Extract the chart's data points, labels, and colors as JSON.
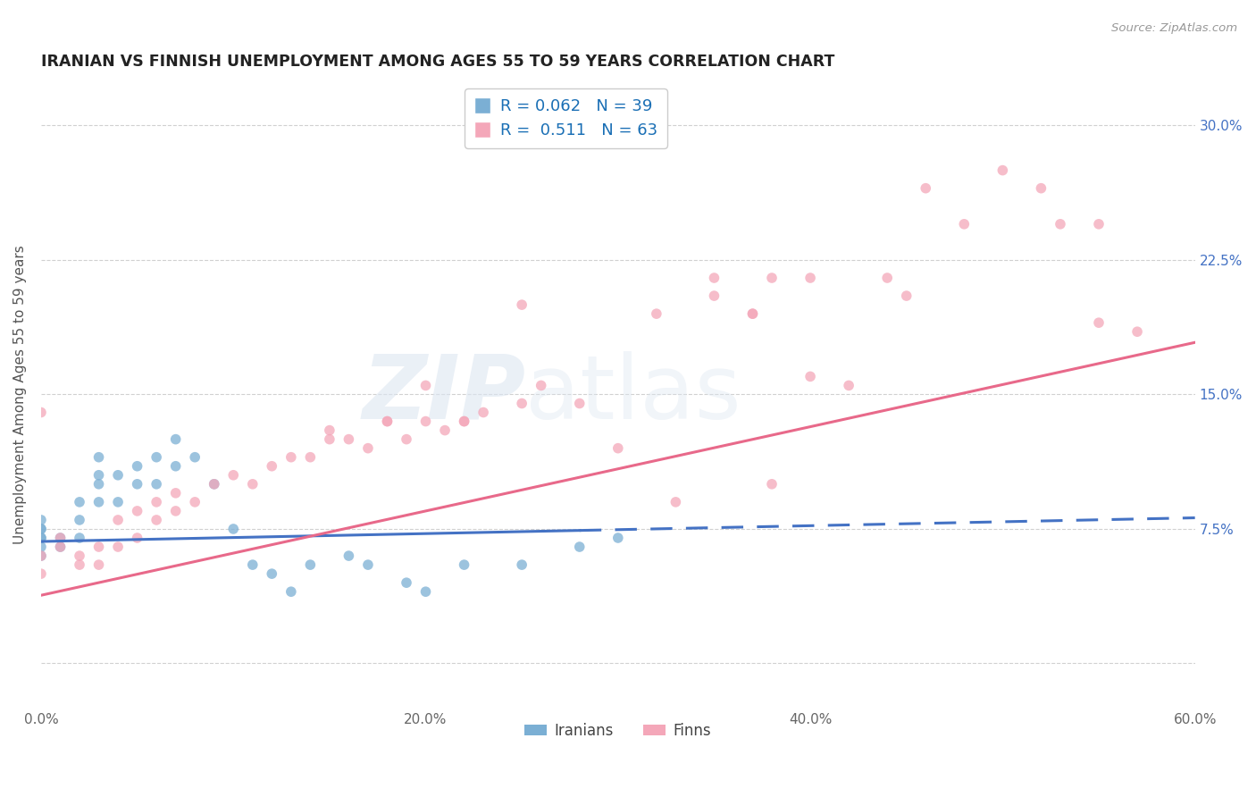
{
  "title": "IRANIAN VS FINNISH UNEMPLOYMENT AMONG AGES 55 TO 59 YEARS CORRELATION CHART",
  "source": "Source: ZipAtlas.com",
  "ylabel": "Unemployment Among Ages 55 to 59 years",
  "xlim": [
    0.0,
    0.6
  ],
  "ylim": [
    -0.025,
    0.325
  ],
  "xticks": [
    0.0,
    0.1,
    0.2,
    0.3,
    0.4,
    0.5,
    0.6
  ],
  "xticklabels": [
    "0.0%",
    "",
    "20.0%",
    "",
    "40.0%",
    "",
    "60.0%"
  ],
  "yticks": [
    0.0,
    0.075,
    0.15,
    0.225,
    0.3
  ],
  "yticklabels": [
    "",
    "7.5%",
    "15.0%",
    "22.5%",
    "30.0%"
  ],
  "iranian_color": "#7bafd4",
  "finn_color": "#f4a7b9",
  "iranian_line_color": "#4472c4",
  "finn_line_color": "#e8698a",
  "legend_R_iranian": "0.062",
  "legend_N_iranian": "39",
  "legend_R_finn": "0.511",
  "legend_N_finn": "63",
  "background_color": "#ffffff",
  "grid_color": "#cccccc",
  "iranian_line_slope": 0.022,
  "iranian_line_intercept": 0.068,
  "finn_line_slope": 0.235,
  "finn_line_intercept": 0.038,
  "iranians_x": [
    0.0,
    0.0,
    0.0,
    0.0,
    0.0,
    0.0,
    0.0,
    0.01,
    0.01,
    0.02,
    0.02,
    0.02,
    0.03,
    0.03,
    0.03,
    0.03,
    0.04,
    0.04,
    0.05,
    0.05,
    0.06,
    0.06,
    0.07,
    0.07,
    0.08,
    0.09,
    0.1,
    0.11,
    0.12,
    0.13,
    0.14,
    0.16,
    0.17,
    0.19,
    0.2,
    0.22,
    0.25,
    0.28,
    0.3
  ],
  "iranians_y": [
    0.06,
    0.065,
    0.07,
    0.07,
    0.075,
    0.075,
    0.08,
    0.065,
    0.07,
    0.07,
    0.08,
    0.09,
    0.09,
    0.1,
    0.105,
    0.115,
    0.09,
    0.105,
    0.1,
    0.11,
    0.1,
    0.115,
    0.11,
    0.125,
    0.115,
    0.1,
    0.075,
    0.055,
    0.05,
    0.04,
    0.055,
    0.06,
    0.055,
    0.045,
    0.04,
    0.055,
    0.055,
    0.065,
    0.07
  ],
  "finns_x": [
    0.0,
    0.0,
    0.0,
    0.01,
    0.01,
    0.02,
    0.02,
    0.03,
    0.03,
    0.04,
    0.04,
    0.05,
    0.05,
    0.06,
    0.06,
    0.07,
    0.07,
    0.08,
    0.09,
    0.1,
    0.11,
    0.12,
    0.13,
    0.14,
    0.15,
    0.16,
    0.17,
    0.18,
    0.19,
    0.2,
    0.21,
    0.22,
    0.23,
    0.25,
    0.26,
    0.28,
    0.3,
    0.32,
    0.33,
    0.35,
    0.37,
    0.38,
    0.4,
    0.42,
    0.44,
    0.45,
    0.46,
    0.48,
    0.5,
    0.52,
    0.53,
    0.55,
    0.57,
    0.38,
    0.4,
    0.2,
    0.22,
    0.25,
    0.35,
    0.37,
    0.15,
    0.18,
    0.55
  ],
  "finns_y": [
    0.14,
    0.05,
    0.06,
    0.07,
    0.065,
    0.06,
    0.055,
    0.065,
    0.055,
    0.065,
    0.08,
    0.07,
    0.085,
    0.09,
    0.08,
    0.095,
    0.085,
    0.09,
    0.1,
    0.105,
    0.1,
    0.11,
    0.115,
    0.115,
    0.125,
    0.125,
    0.12,
    0.135,
    0.125,
    0.135,
    0.13,
    0.135,
    0.14,
    0.145,
    0.155,
    0.145,
    0.12,
    0.195,
    0.09,
    0.205,
    0.195,
    0.215,
    0.16,
    0.155,
    0.215,
    0.205,
    0.265,
    0.245,
    0.275,
    0.265,
    0.245,
    0.245,
    0.185,
    0.1,
    0.215,
    0.155,
    0.135,
    0.2,
    0.215,
    0.195,
    0.13,
    0.135,
    0.19
  ]
}
